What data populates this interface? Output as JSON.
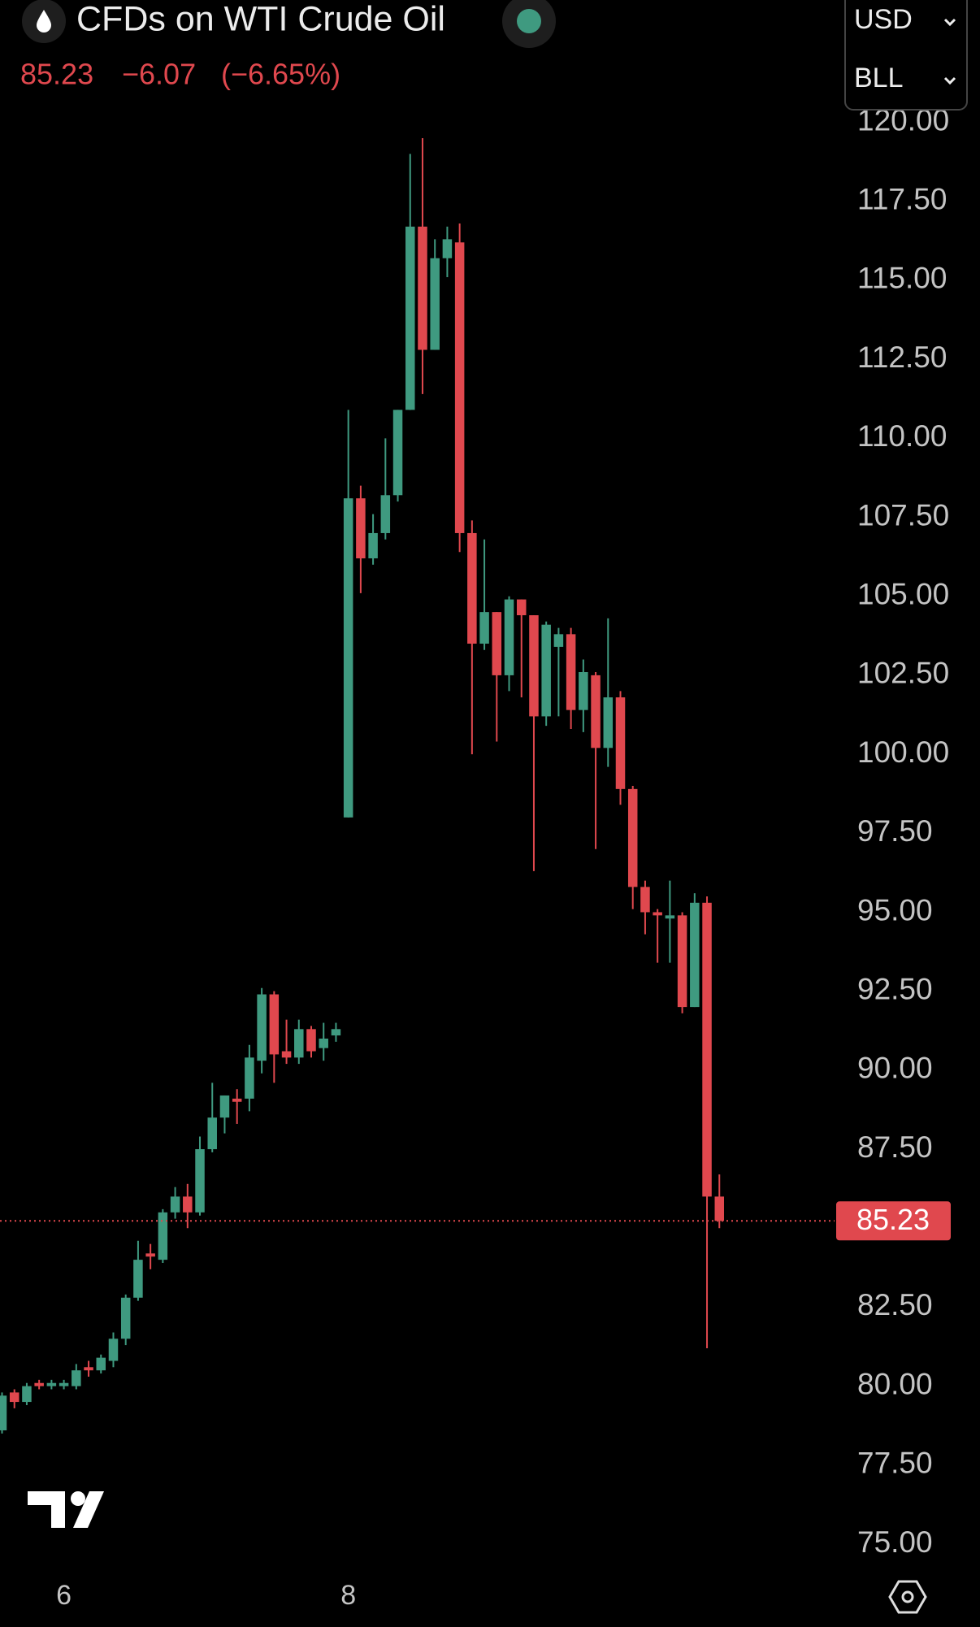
{
  "header": {
    "title": "CFDs on WTI Crude Oil",
    "price": "85.23",
    "change": "−6.07",
    "change_percent": "(−6.65%)",
    "currency": "USD",
    "unit": "BLL"
  },
  "chart_data": {
    "type": "candlestick",
    "categories": [
      null,
      null,
      null,
      null,
      null,
      "6",
      null,
      null,
      null,
      null,
      null,
      null,
      null,
      null,
      null,
      null,
      null,
      null,
      null,
      null,
      null,
      null,
      null,
      null,
      null,
      null,
      null,
      null,
      "8",
      null,
      null,
      null,
      null,
      null,
      null,
      null,
      null,
      null,
      null,
      null,
      null,
      null,
      null,
      null,
      null,
      null,
      null,
      null,
      null,
      null,
      null,
      null,
      null,
      null,
      null,
      null,
      null,
      null,
      null
    ],
    "open": [
      78.6,
      79.8,
      79.5,
      80.1,
      80.0,
      80.0,
      80.0,
      80.6,
      80.5,
      80.8,
      81.5,
      82.8,
      84.2,
      84.0,
      85.5,
      86.0,
      85.5,
      87.5,
      88.5,
      89.1,
      89.1,
      90.3,
      92.4,
      90.6,
      90.4,
      91.3,
      90.7,
      91.1,
      98.0,
      108.1,
      106.2,
      107.0,
      108.2,
      110.9,
      116.7,
      112.8,
      115.7,
      116.2,
      107.0,
      103.5,
      104.5,
      102.5,
      104.9,
      104.4,
      101.2,
      103.4,
      103.8,
      101.4,
      102.5,
      100.2,
      101.8,
      98.9,
      95.8,
      95.0,
      94.8,
      94.9,
      92.0,
      95.3,
      86.0
    ],
    "high": [
      79.8,
      79.9,
      80.1,
      80.2,
      80.2,
      80.2,
      80.7,
      80.8,
      81.0,
      81.7,
      82.9,
      84.6,
      84.5,
      85.6,
      86.3,
      86.4,
      87.9,
      89.6,
      89.2,
      89.4,
      90.8,
      92.6,
      92.5,
      91.6,
      91.6,
      91.4,
      91.5,
      91.5,
      110.9,
      108.5,
      107.6,
      110.0,
      110.9,
      119.0,
      119.5,
      116.3,
      116.7,
      116.8,
      107.4,
      106.8,
      104.5,
      105.0,
      104.9,
      104.4,
      104.2,
      104.0,
      104.0,
      103.0,
      102.6,
      104.3,
      102.0,
      99.0,
      96.0,
      95.1,
      96.0,
      95.0,
      95.6,
      95.5,
      86.7
    ],
    "low": [
      78.5,
      79.3,
      79.4,
      79.9,
      79.9,
      79.9,
      79.9,
      80.3,
      80.4,
      80.6,
      81.3,
      82.7,
      83.7,
      83.9,
      85.3,
      85.0,
      85.4,
      87.4,
      88.0,
      88.3,
      88.7,
      89.9,
      89.6,
      90.2,
      90.2,
      90.4,
      90.3,
      90.9,
      98.0,
      105.1,
      106.0,
      106.8,
      108.0,
      110.9,
      111.4,
      112.8,
      115.1,
      106.4,
      100.0,
      103.3,
      100.4,
      102.0,
      101.8,
      96.3,
      100.9,
      101.2,
      100.8,
      100.7,
      97.0,
      99.6,
      98.4,
      95.1,
      94.3,
      93.4,
      93.4,
      91.8,
      92.0,
      81.2,
      85.0
    ],
    "close": [
      79.7,
      79.5,
      80.0,
      80.0,
      80.1,
      80.1,
      80.5,
      80.5,
      80.9,
      81.5,
      82.8,
      84.0,
      84.1,
      85.5,
      86.0,
      85.5,
      87.5,
      88.5,
      89.2,
      89.0,
      90.4,
      92.4,
      90.5,
      90.4,
      91.3,
      90.6,
      91.0,
      91.3,
      108.1,
      106.2,
      107.0,
      108.2,
      110.9,
      116.7,
      112.8,
      115.7,
      116.3,
      107.0,
      103.5,
      104.5,
      102.5,
      104.9,
      104.4,
      101.2,
      104.1,
      103.8,
      101.4,
      102.6,
      100.2,
      101.8,
      98.9,
      95.8,
      95.0,
      94.9,
      94.9,
      92.0,
      95.3,
      86.0,
      85.23
    ],
    "up_color": "#3f9a80",
    "down_color": "#e0484e",
    "last_price": 85.23,
    "last_price_label": "85.23",
    "ylim": [
      74.1,
      120.58
    ],
    "yticks": [
      {
        "value": 75,
        "label": "75.00"
      },
      {
        "value": 77.5,
        "label": "77.50"
      },
      {
        "value": 80,
        "label": "80.00"
      },
      {
        "value": 82.5,
        "label": "82.50"
      },
      {
        "value": 85,
        "label": "85.00"
      },
      {
        "value": 87.5,
        "label": "87.50"
      },
      {
        "value": 90,
        "label": "90.00"
      },
      {
        "value": 92.5,
        "label": "92.50"
      },
      {
        "value": 95,
        "label": "95.00"
      },
      {
        "value": 97.5,
        "label": "97.50"
      },
      {
        "value": 100,
        "label": "100.00"
      },
      {
        "value": 102.5,
        "label": "102.50"
      },
      {
        "value": 105,
        "label": "105.00"
      },
      {
        "value": 107.5,
        "label": "107.50"
      },
      {
        "value": 110,
        "label": "110.00"
      },
      {
        "value": 112.5,
        "label": "112.50"
      },
      {
        "value": 115,
        "label": "115.00"
      },
      {
        "value": 117.5,
        "label": "117.50"
      },
      {
        "value": 120,
        "label": "120.00"
      }
    ]
  }
}
